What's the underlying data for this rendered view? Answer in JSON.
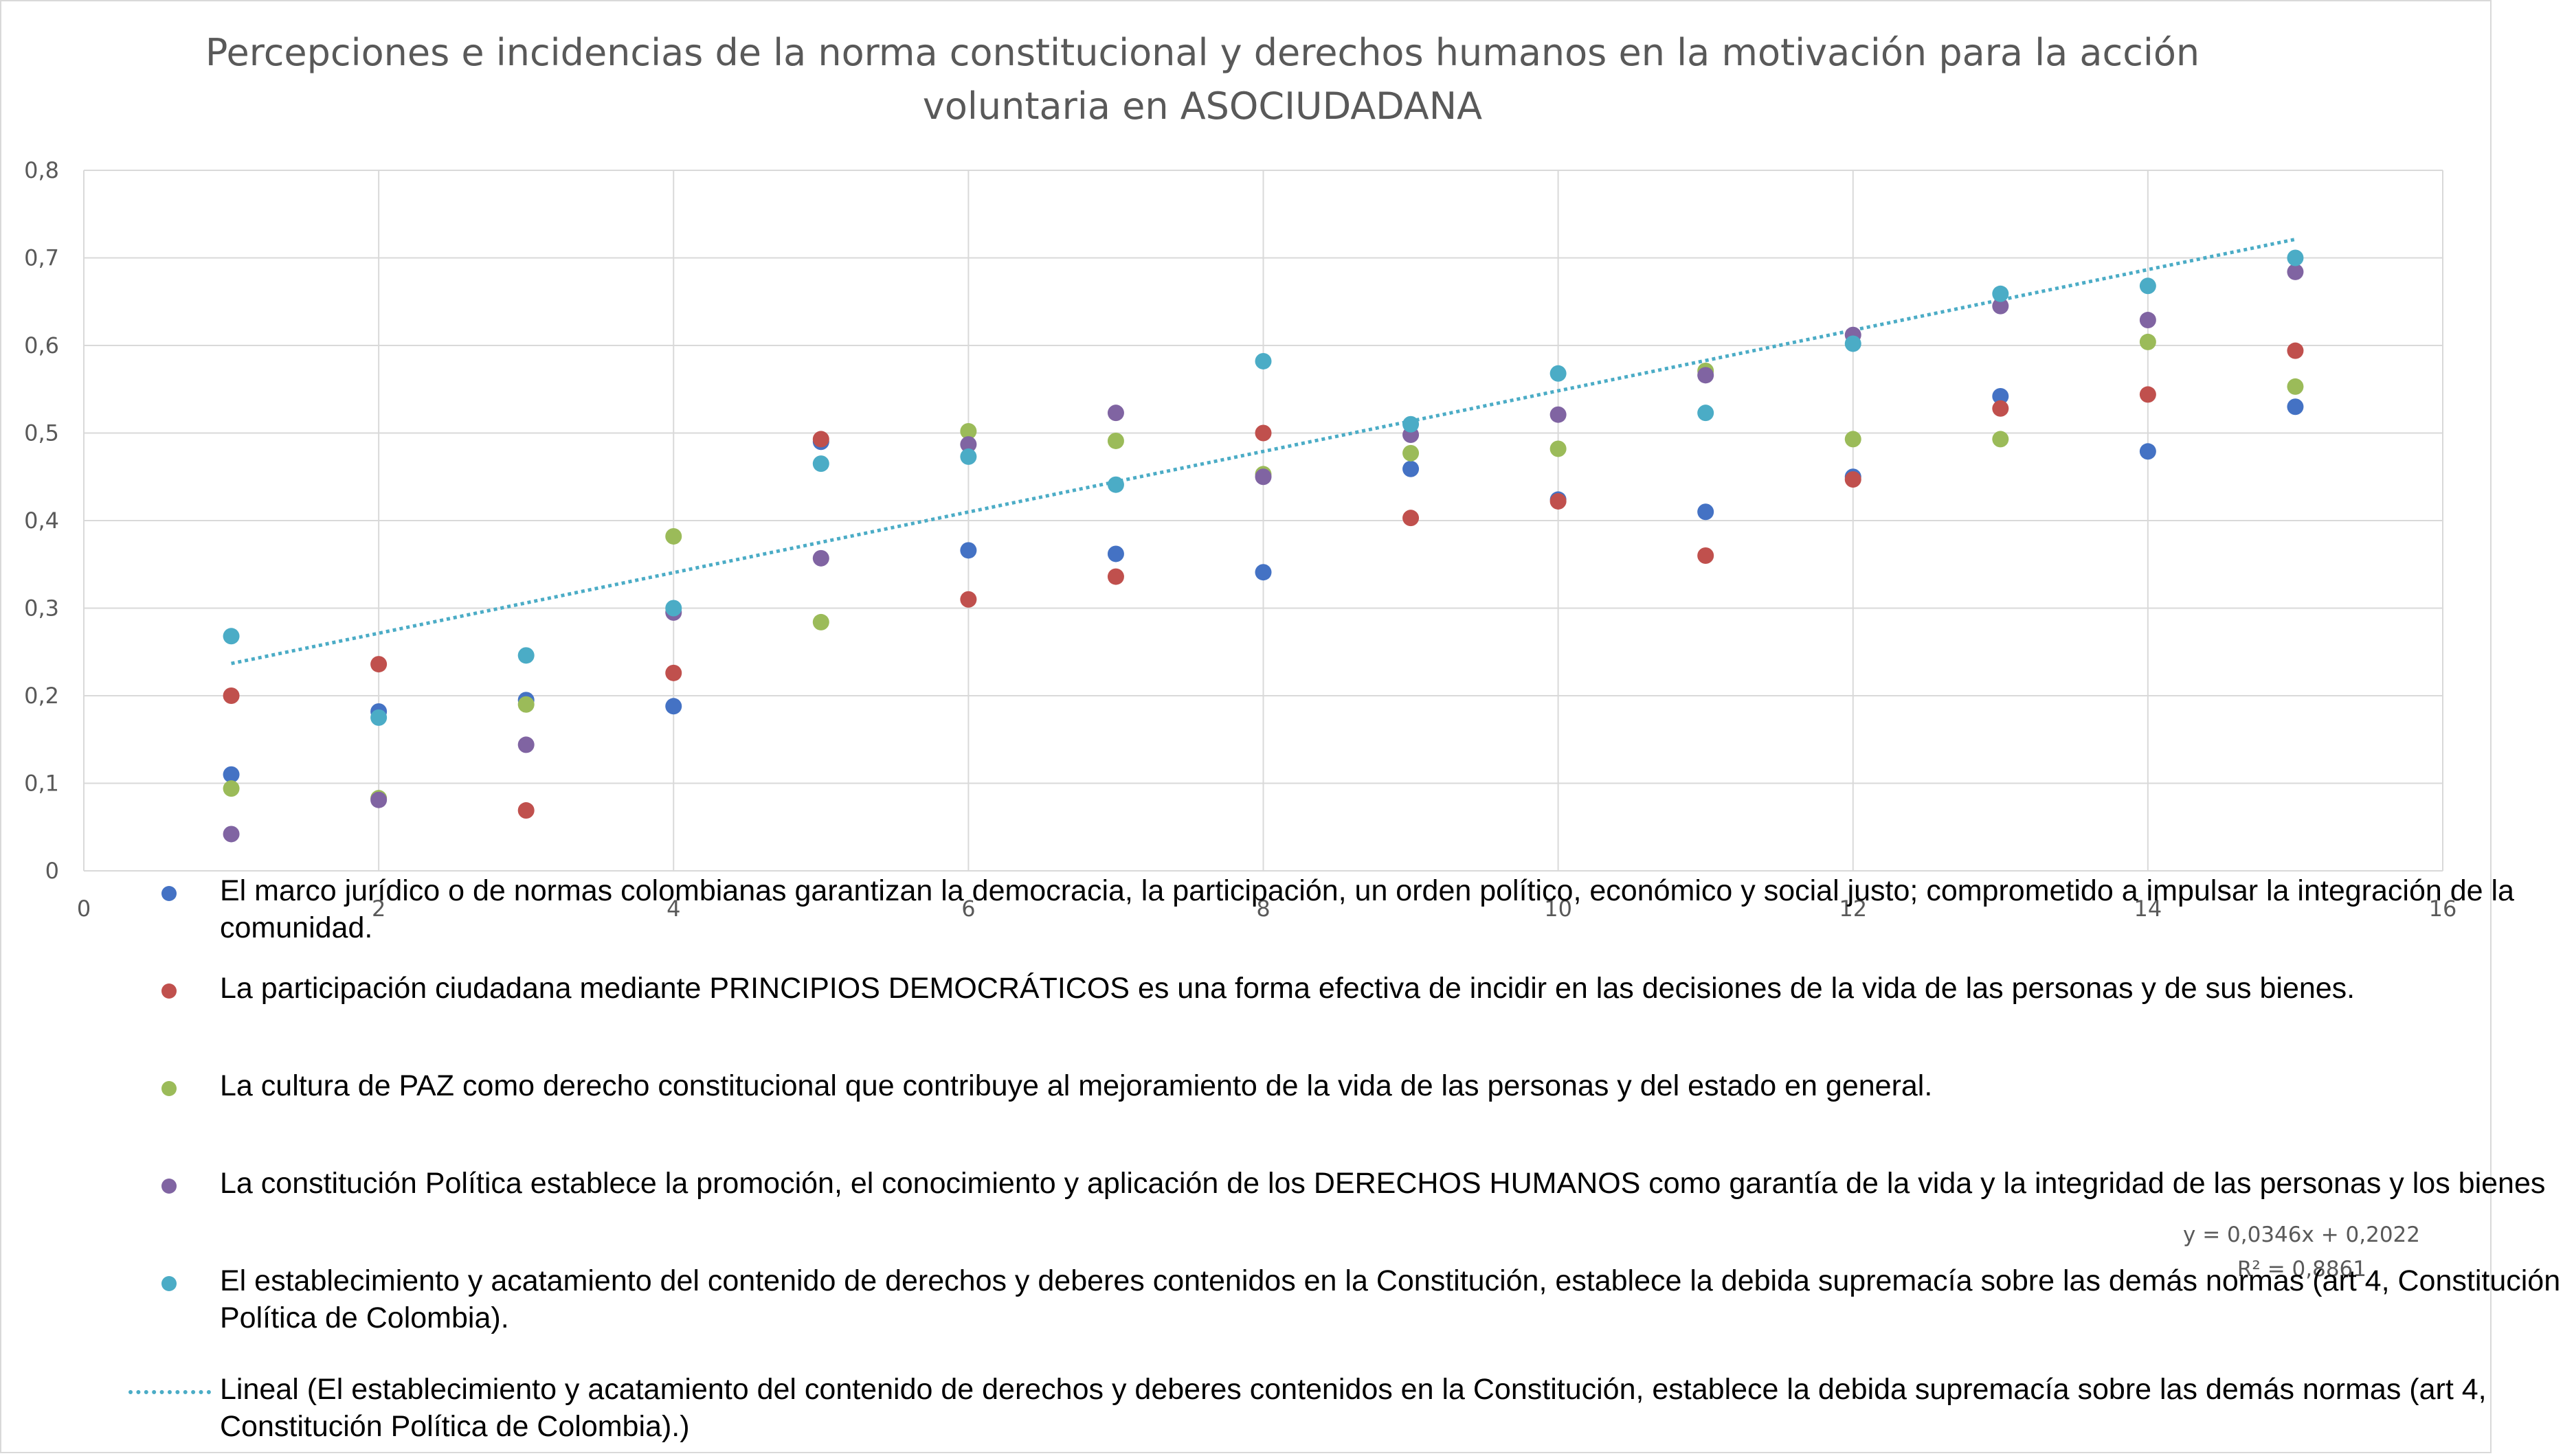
{
  "chart_data": {
    "type": "scatter",
    "title": "Percepciones e incidencias de la norma constitucional y derechos humanos en la motivación para la acción voluntaria en ASOCIUDADANA",
    "xlim": [
      0,
      16
    ],
    "ylim": [
      0,
      0.8
    ],
    "x_ticks": [
      "0",
      "2",
      "4",
      "6",
      "8",
      "10",
      "12",
      "14",
      "16"
    ],
    "y_ticks": [
      "0",
      "0,1",
      "0,2",
      "0,3",
      "0,4",
      "0,5",
      "0,6",
      "0,7",
      "0,8"
    ],
    "grid": true,
    "legend_position": "bottom",
    "series": [
      {
        "name": "El marco jurídico o de normas colombianas  garantizan la democracia, la participación, un orden político, económico y social justo; comprometido a impulsar la integración de la comunidad.",
        "color": "#4472c4",
        "x": [
          1,
          2,
          3,
          4,
          5,
          6,
          7,
          8,
          9,
          10,
          11,
          12,
          13,
          14,
          15
        ],
        "y": [
          0.11,
          0.182,
          0.195,
          0.188,
          0.49,
          0.366,
          0.362,
          0.341,
          0.459,
          0.424,
          0.41,
          0.45,
          0.542,
          0.479,
          0.53
        ]
      },
      {
        "name": "La participación ciudadana mediante PRINCIPIOS DEMOCRÁTICOS es una forma efectiva de incidir en las decisiones de la vida de las personas y de sus bienes.",
        "color": "#c0504d",
        "x": [
          1,
          2,
          3,
          4,
          5,
          6,
          7,
          8,
          9,
          10,
          11,
          12,
          13,
          14,
          15
        ],
        "y": [
          0.2,
          0.236,
          0.069,
          0.226,
          0.493,
          0.31,
          0.336,
          0.5,
          0.403,
          0.422,
          0.36,
          0.447,
          0.528,
          0.544,
          0.594
        ]
      },
      {
        "name": "La cultura de PAZ como derecho constitucional que contribuye al mejoramiento de la vida de las personas y del estado en general.",
        "color": "#9bbb59",
        "x": [
          1,
          2,
          3,
          4,
          5,
          6,
          7,
          8,
          9,
          10,
          11,
          12,
          13,
          14,
          15
        ],
        "y": [
          0.094,
          0.083,
          0.19,
          0.382,
          0.284,
          0.502,
          0.491,
          0.453,
          0.477,
          0.482,
          0.571,
          0.493,
          0.493,
          0.604,
          0.553
        ]
      },
      {
        "name": "La constitución Política establece la promoción, el conocimiento y aplicación de los DERECHOS HUMANOS como garantía de la vida y la integridad de las personas y los bienes",
        "color": "#8064a2",
        "x": [
          1,
          2,
          3,
          4,
          5,
          6,
          7,
          8,
          9,
          10,
          11,
          12,
          13,
          14,
          15
        ],
        "y": [
          0.042,
          0.081,
          0.144,
          0.295,
          0.357,
          0.487,
          0.523,
          0.45,
          0.498,
          0.521,
          0.566,
          0.612,
          0.645,
          0.629,
          0.684
        ]
      },
      {
        "name": "El establecimiento y acatamiento del contenido de derechos y deberes contenidos en la Constitución, establece la debida supremacía sobre las demás normas (art 4, Constitución Política de Colombia).",
        "color": "#4bacc6",
        "x": [
          1,
          2,
          3,
          4,
          5,
          6,
          7,
          8,
          9,
          10,
          11,
          12,
          13,
          14,
          15
        ],
        "y": [
          0.268,
          0.175,
          0.246,
          0.3,
          0.465,
          0.473,
          0.441,
          0.582,
          0.51,
          0.568,
          0.523,
          0.602,
          0.659,
          0.668,
          0.7
        ]
      }
    ],
    "trendline": {
      "name": "Lineal (El establecimiento y acatamiento del contenido de derechos y deberes contenidos en la Constitución, establece la debida supremacía sobre las demás normas (art 4, Constitución Política de Colombia).)",
      "color": "#4bacc6",
      "slope": 0.0346,
      "intercept": 0.2022,
      "x_range": [
        1,
        15
      ],
      "equation": "y = 0,0346x + 0,2022",
      "r_squared": "R² = 0,8861"
    }
  }
}
